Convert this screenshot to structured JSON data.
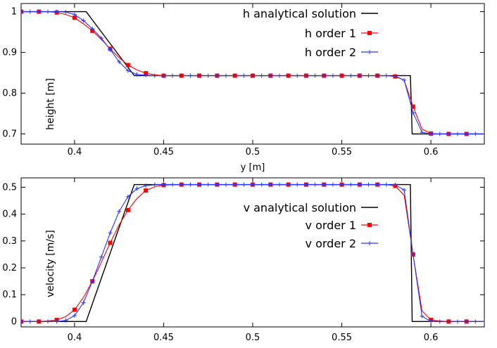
{
  "chart_data": [
    {
      "type": "line",
      "xlabel": "y [m]",
      "ylabel": "height [m]",
      "xlim": [
        0.37,
        0.63
      ],
      "ylim": [
        0.675,
        1.02
      ],
      "xticks": [
        0.4,
        0.45,
        0.5,
        0.55,
        0.6
      ],
      "xtick_labels": [
        "0.4",
        "0.45",
        "0.5",
        "0.55",
        "0.6"
      ],
      "yticks": [
        0.7,
        0.8,
        0.9,
        1.0
      ],
      "ytick_labels": [
        "0.7",
        "0.8",
        "0.9",
        "1"
      ],
      "grid": false,
      "legend_position": "top-right",
      "series": [
        {
          "name": "h analytical solution",
          "color": "#000000",
          "marker": "none",
          "x": [
            0.37,
            0.4065,
            0.4335,
            0.5885,
            0.5895,
            0.63
          ],
          "y": [
            1.0,
            1.0,
            0.843,
            0.843,
            0.7,
            0.7
          ]
        },
        {
          "name": "h order 1",
          "color": "#ff0000",
          "marker": "square",
          "x": [
            0.37,
            0.375,
            0.38,
            0.385,
            0.39,
            0.395,
            0.4,
            0.405,
            0.41,
            0.415,
            0.42,
            0.425,
            0.43,
            0.435,
            0.44,
            0.445,
            0.45,
            0.46,
            0.47,
            0.48,
            0.49,
            0.5,
            0.51,
            0.52,
            0.53,
            0.54,
            0.55,
            0.56,
            0.57,
            0.575,
            0.58,
            0.585,
            0.59,
            0.595,
            0.6,
            0.605,
            0.61,
            0.62,
            0.63
          ],
          "y": [
            1.0,
            1.0,
            1.0,
            1.0,
            0.998,
            0.993,
            0.985,
            0.97,
            0.953,
            0.932,
            0.909,
            0.887,
            0.869,
            0.857,
            0.849,
            0.845,
            0.843,
            0.843,
            0.843,
            0.843,
            0.843,
            0.843,
            0.843,
            0.843,
            0.843,
            0.843,
            0.843,
            0.843,
            0.843,
            0.843,
            0.841,
            0.832,
            0.767,
            0.712,
            0.701,
            0.7,
            0.7,
            0.7,
            0.7
          ],
          "marker_x": [
            0.37,
            0.38,
            0.39,
            0.4,
            0.41,
            0.42,
            0.43,
            0.44,
            0.45,
            0.46,
            0.47,
            0.48,
            0.49,
            0.5,
            0.51,
            0.52,
            0.53,
            0.54,
            0.55,
            0.56,
            0.57,
            0.58,
            0.59,
            0.6,
            0.61,
            0.62
          ],
          "marker_y": [
            1.0,
            1.0,
            0.998,
            0.985,
            0.953,
            0.909,
            0.869,
            0.849,
            0.843,
            0.843,
            0.843,
            0.843,
            0.843,
            0.843,
            0.843,
            0.843,
            0.843,
            0.843,
            0.843,
            0.843,
            0.843,
            0.841,
            0.767,
            0.701,
            0.7,
            0.7
          ]
        },
        {
          "name": "h order 2",
          "color": "#2a35ff",
          "marker": "plus",
          "x": [
            0.37,
            0.375,
            0.38,
            0.385,
            0.39,
            0.395,
            0.4,
            0.405,
            0.41,
            0.415,
            0.42,
            0.425,
            0.43,
            0.435,
            0.44,
            0.445,
            0.45,
            0.46,
            0.47,
            0.48,
            0.49,
            0.5,
            0.51,
            0.52,
            0.53,
            0.54,
            0.55,
            0.56,
            0.57,
            0.575,
            0.58,
            0.585,
            0.59,
            0.595,
            0.6,
            0.605,
            0.61,
            0.62,
            0.63
          ],
          "y": [
            1.0,
            1.0,
            1.0,
            1.0,
            1.0,
            0.999,
            0.993,
            0.978,
            0.958,
            0.935,
            0.907,
            0.877,
            0.855,
            0.846,
            0.844,
            0.843,
            0.843,
            0.843,
            0.843,
            0.843,
            0.843,
            0.843,
            0.843,
            0.843,
            0.843,
            0.843,
            0.843,
            0.843,
            0.843,
            0.843,
            0.842,
            0.832,
            0.752,
            0.704,
            0.7,
            0.7,
            0.7,
            0.7,
            0.7
          ],
          "marker_x": [
            0.37,
            0.375,
            0.38,
            0.385,
            0.39,
            0.395,
            0.4,
            0.405,
            0.41,
            0.415,
            0.42,
            0.425,
            0.43,
            0.435,
            0.44,
            0.445,
            0.45,
            0.455,
            0.46,
            0.465,
            0.47,
            0.475,
            0.48,
            0.485,
            0.49,
            0.495,
            0.5,
            0.505,
            0.51,
            0.515,
            0.52,
            0.525,
            0.53,
            0.535,
            0.54,
            0.545,
            0.55,
            0.555,
            0.56,
            0.565,
            0.57,
            0.575,
            0.58,
            0.585,
            0.59,
            0.595,
            0.6,
            0.605,
            0.61,
            0.615,
            0.62,
            0.625,
            0.63
          ],
          "marker_y": [
            1.0,
            1.0,
            1.0,
            1.0,
            1.0,
            0.999,
            0.993,
            0.978,
            0.958,
            0.935,
            0.907,
            0.877,
            0.855,
            0.846,
            0.844,
            0.843,
            0.843,
            0.843,
            0.843,
            0.843,
            0.843,
            0.843,
            0.843,
            0.843,
            0.843,
            0.843,
            0.843,
            0.843,
            0.843,
            0.843,
            0.843,
            0.843,
            0.843,
            0.843,
            0.843,
            0.843,
            0.843,
            0.843,
            0.843,
            0.843,
            0.843,
            0.843,
            0.842,
            0.832,
            0.752,
            0.704,
            0.7,
            0.7,
            0.7,
            0.7,
            0.7,
            0.7,
            0.7
          ]
        }
      ]
    },
    {
      "type": "line",
      "xlabel": "",
      "ylabel": "velocity [m/s]",
      "xlim": [
        0.37,
        0.63
      ],
      "ylim": [
        -0.02,
        0.535
      ],
      "xticks": [
        0.4,
        0.45,
        0.5,
        0.55,
        0.6
      ],
      "xtick_labels": [
        "0.4",
        "0.45",
        "0.5",
        "0.55",
        "0.6"
      ],
      "yticks": [
        0,
        0.1,
        0.2,
        0.3,
        0.4,
        0.5
      ],
      "ytick_labels": [
        "0",
        "0.1",
        "0.2",
        "0.3",
        "0.4",
        "0.5"
      ],
      "grid": false,
      "legend_position": "center-right",
      "series": [
        {
          "name": "v analytical solution",
          "color": "#000000",
          "marker": "none",
          "x": [
            0.37,
            0.4065,
            0.4335,
            0.5885,
            0.5895,
            0.63
          ],
          "y": [
            0.0,
            0.0,
            0.51,
            0.51,
            0.0,
            0.0
          ]
        },
        {
          "name": "v order 1",
          "color": "#ff0000",
          "marker": "square",
          "x": [
            0.37,
            0.375,
            0.38,
            0.385,
            0.39,
            0.395,
            0.4,
            0.405,
            0.41,
            0.415,
            0.42,
            0.425,
            0.43,
            0.435,
            0.44,
            0.445,
            0.45,
            0.46,
            0.47,
            0.48,
            0.49,
            0.5,
            0.51,
            0.52,
            0.53,
            0.54,
            0.55,
            0.56,
            0.57,
            0.575,
            0.58,
            0.585,
            0.59,
            0.595,
            0.6,
            0.605,
            0.61,
            0.62,
            0.63
          ],
          "y": [
            0.0,
            0.0,
            0.0,
            0.002,
            0.006,
            0.018,
            0.044,
            0.09,
            0.15,
            0.22,
            0.293,
            0.36,
            0.415,
            0.458,
            0.488,
            0.502,
            0.508,
            0.51,
            0.51,
            0.51,
            0.51,
            0.51,
            0.51,
            0.51,
            0.51,
            0.51,
            0.51,
            0.51,
            0.51,
            0.51,
            0.505,
            0.47,
            0.25,
            0.04,
            0.006,
            0.002,
            0.0,
            0.0,
            0.0
          ],
          "marker_x": [
            0.37,
            0.38,
            0.39,
            0.4,
            0.41,
            0.42,
            0.43,
            0.44,
            0.45,
            0.46,
            0.47,
            0.48,
            0.49,
            0.5,
            0.51,
            0.52,
            0.53,
            0.54,
            0.55,
            0.56,
            0.57,
            0.58,
            0.59,
            0.6,
            0.61,
            0.62
          ],
          "marker_y": [
            0.0,
            0.0,
            0.006,
            0.044,
            0.15,
            0.293,
            0.415,
            0.488,
            0.508,
            0.51,
            0.51,
            0.51,
            0.51,
            0.51,
            0.51,
            0.51,
            0.51,
            0.51,
            0.51,
            0.51,
            0.51,
            0.505,
            0.25,
            0.006,
            0.0,
            0.0
          ]
        },
        {
          "name": "v order 2",
          "color": "#2a35ff",
          "marker": "plus",
          "x": [
            0.37,
            0.375,
            0.38,
            0.385,
            0.39,
            0.395,
            0.4,
            0.405,
            0.41,
            0.415,
            0.42,
            0.425,
            0.43,
            0.435,
            0.44,
            0.445,
            0.45,
            0.46,
            0.47,
            0.48,
            0.49,
            0.5,
            0.51,
            0.52,
            0.53,
            0.54,
            0.55,
            0.56,
            0.57,
            0.575,
            0.58,
            0.585,
            0.59,
            0.595,
            0.6,
            0.605,
            0.61,
            0.62,
            0.63
          ],
          "y": [
            0.0,
            0.0,
            0.0,
            0.0,
            0.0,
            0.004,
            0.022,
            0.07,
            0.15,
            0.24,
            0.33,
            0.41,
            0.465,
            0.495,
            0.506,
            0.509,
            0.51,
            0.51,
            0.51,
            0.51,
            0.51,
            0.51,
            0.51,
            0.51,
            0.51,
            0.51,
            0.51,
            0.51,
            0.51,
            0.51,
            0.509,
            0.49,
            0.25,
            0.02,
            0.0,
            0.0,
            0.0,
            0.0,
            0.0
          ],
          "marker_x": [
            0.37,
            0.375,
            0.38,
            0.385,
            0.39,
            0.395,
            0.4,
            0.405,
            0.41,
            0.415,
            0.42,
            0.425,
            0.43,
            0.435,
            0.44,
            0.445,
            0.45,
            0.455,
            0.46,
            0.465,
            0.47,
            0.475,
            0.48,
            0.485,
            0.49,
            0.495,
            0.5,
            0.505,
            0.51,
            0.515,
            0.52,
            0.525,
            0.53,
            0.535,
            0.54,
            0.545,
            0.55,
            0.555,
            0.56,
            0.565,
            0.57,
            0.575,
            0.58,
            0.585,
            0.59,
            0.595,
            0.6,
            0.605,
            0.61,
            0.615,
            0.62,
            0.625,
            0.63
          ],
          "marker_y": [
            0.0,
            0.0,
            0.0,
            0.0,
            0.0,
            0.004,
            0.022,
            0.07,
            0.15,
            0.24,
            0.33,
            0.41,
            0.465,
            0.495,
            0.506,
            0.509,
            0.51,
            0.51,
            0.51,
            0.51,
            0.51,
            0.51,
            0.51,
            0.51,
            0.51,
            0.51,
            0.51,
            0.51,
            0.51,
            0.51,
            0.51,
            0.51,
            0.51,
            0.51,
            0.51,
            0.51,
            0.51,
            0.51,
            0.51,
            0.51,
            0.51,
            0.51,
            0.509,
            0.49,
            0.25,
            0.02,
            0.0,
            0.0,
            0.0,
            0.0,
            0.0,
            0.0,
            0.0
          ]
        }
      ]
    }
  ]
}
